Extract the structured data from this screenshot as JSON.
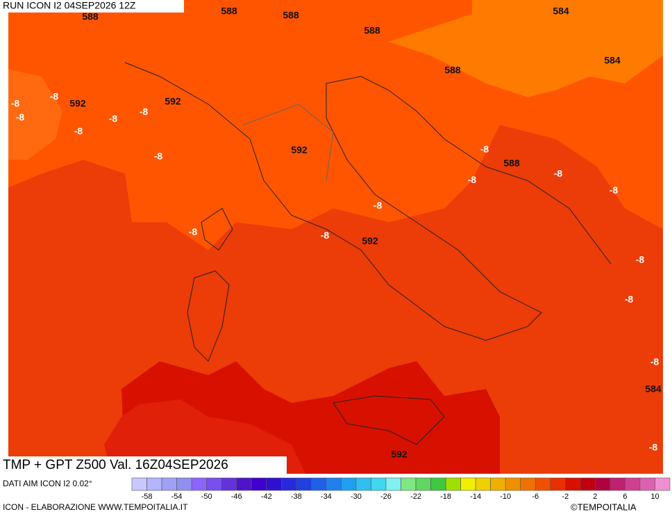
{
  "header": {
    "run": "RUN ICON I2 04SEP2026 12Z"
  },
  "map": {
    "contour_labels": [
      588,
      588,
      588,
      588,
      584,
      584,
      588,
      592,
      592,
      592,
      588,
      592,
      584,
      592,
      -8,
      -8,
      -8,
      -8,
      -8,
      -8,
      -8,
      -8,
      -8,
      -8,
      -8,
      -8,
      -8,
      -8,
      -8,
      -8,
      -8,
      -8
    ]
  },
  "footer": {
    "product": "TMP + GPT Z500 Val. 16Z04SEP2026",
    "source": "DATI AIM ICON I2 0.02°",
    "credit": "ICON - ELABORAZIONE WWW.TEMPOITALIA.IT",
    "copyright": "©TEMPOITALIA"
  },
  "colorbar": {
    "colors": [
      "#c8c8ff",
      "#b4b4ff",
      "#a0a0f5",
      "#9090f0",
      "#8c64ff",
      "#7850f0",
      "#6432dc",
      "#5014c8",
      "#4000d0",
      "#3010d0",
      "#2828dc",
      "#2040e0",
      "#2060e8",
      "#2080f0",
      "#20a0f0",
      "#30c0f0",
      "#40d8f0",
      "#80f0f0",
      "#80e880",
      "#60d860",
      "#40c840",
      "#a0e000",
      "#f0f000",
      "#f0d000",
      "#f0b000",
      "#f09000",
      "#f07000",
      "#f05000",
      "#e83000",
      "#d81000",
      "#c00010",
      "#b00040",
      "#c02070",
      "#d04090",
      "#e060b0",
      "#f090d0"
    ],
    "labels": [
      -58,
      -54,
      -50,
      -46,
      -42,
      -38,
      -34,
      -30,
      -26,
      -22,
      -18,
      -14,
      -10,
      -6,
      -2,
      2,
      6,
      10
    ]
  }
}
